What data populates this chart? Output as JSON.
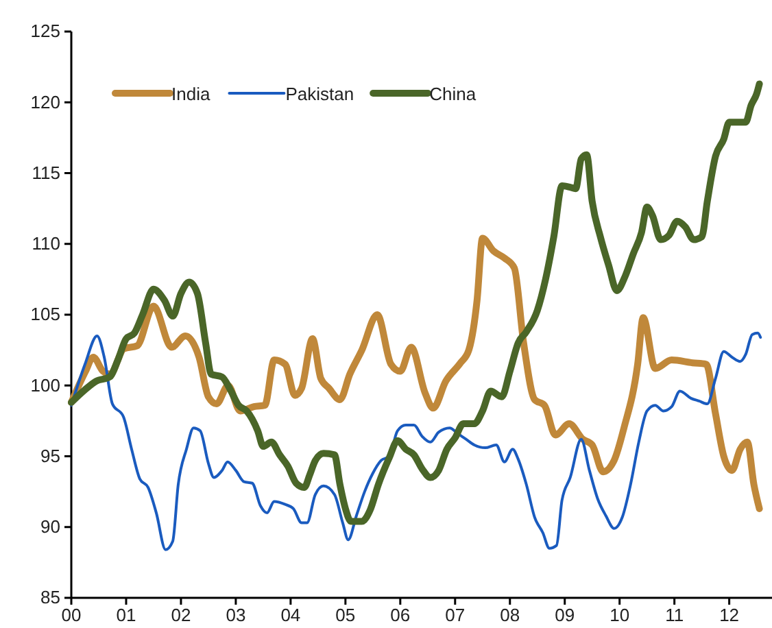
{
  "chart_data": {
    "type": "line",
    "xlim": [
      0,
      12.78
    ],
    "ylim": [
      85,
      125
    ],
    "xticks": [
      {
        "value": 0,
        "label": "00"
      },
      {
        "value": 1,
        "label": "01"
      },
      {
        "value": 2,
        "label": "02"
      },
      {
        "value": 3,
        "label": "03"
      },
      {
        "value": 4,
        "label": "04"
      },
      {
        "value": 5,
        "label": "05"
      },
      {
        "value": 6,
        "label": "06"
      },
      {
        "value": 7,
        "label": "07"
      },
      {
        "value": 8,
        "label": "08"
      },
      {
        "value": 9,
        "label": "09"
      },
      {
        "value": 10,
        "label": "10"
      },
      {
        "value": 11,
        "label": "11"
      },
      {
        "value": 12,
        "label": "12"
      }
    ],
    "yticks": [
      85,
      90,
      95,
      100,
      105,
      110,
      115,
      120,
      125
    ],
    "grid": false,
    "legend": "top left",
    "marker": "none",
    "line_style": "solid",
    "series": [
      {
        "name": "India",
        "color": "#c0883a",
        "x": [
          0,
          0.26,
          0.4,
          0.58,
          0.71,
          0.96,
          1.2,
          1.5,
          1.83,
          2.08,
          2.33,
          2.5,
          2.65,
          2.86,
          3.08,
          3.33,
          3.53,
          3.7,
          3.9,
          4.08,
          4.2,
          4.4,
          4.55,
          4.7,
          4.9,
          5.08,
          5.3,
          5.58,
          5.83,
          6.0,
          6.2,
          6.45,
          6.6,
          6.83,
          7.1,
          7.25,
          7.4,
          7.5,
          7.7,
          7.9,
          8.08,
          8.25,
          8.45,
          8.63,
          8.83,
          9.08,
          9.33,
          9.5,
          9.7,
          9.9,
          10.08,
          10.33,
          10.43,
          10.65,
          10.95,
          11.33,
          11.58,
          11.75,
          11.9,
          12.05,
          12.2,
          12.33,
          12.45,
          12.55
        ],
        "values": [
          98.8,
          101,
          102,
          101,
          100.8,
          102.6,
          102.8,
          105.6,
          102.7,
          103.5,
          102,
          99.2,
          98.7,
          100,
          98.2,
          98.5,
          98.6,
          101.8,
          101.5,
          99.3,
          99.8,
          103.3,
          100.5,
          99.8,
          99,
          100.8,
          102.5,
          105,
          101.5,
          101,
          102.7,
          99.5,
          98.4,
          100.3,
          101.6,
          102.5,
          106,
          110.4,
          109.5,
          109,
          108.3,
          103,
          99,
          98.6,
          96.5,
          97.3,
          96.2,
          95.8,
          93.9,
          94.7,
          97,
          101.5,
          104.8,
          101.2,
          101.8,
          101.6,
          101.5,
          98,
          95,
          94,
          95.5,
          96,
          93,
          91.3
        ]
      },
      {
        "name": "Pakistan",
        "color": "#1a5bbf",
        "x": [
          0,
          0.25,
          0.47,
          0.6,
          0.75,
          0.95,
          1.1,
          1.25,
          1.4,
          1.55,
          1.72,
          1.85,
          1.95,
          2.1,
          2.23,
          2.35,
          2.5,
          2.6,
          2.75,
          2.85,
          3.0,
          3.15,
          3.3,
          3.45,
          3.57,
          3.7,
          3.9,
          4.05,
          4.2,
          4.3,
          4.45,
          4.6,
          4.8,
          4.95,
          5.05,
          5.2,
          5.35,
          5.5,
          5.65,
          5.8,
          5.95,
          6.1,
          6.25,
          6.4,
          6.55,
          6.7,
          6.9,
          7.05,
          7.2,
          7.35,
          7.55,
          7.75,
          7.9,
          8.05,
          8.15,
          8.3,
          8.45,
          8.6,
          8.72,
          8.85,
          8.95,
          9.1,
          9.3,
          9.45,
          9.6,
          9.75,
          9.9,
          10.05,
          10.2,
          10.35,
          10.5,
          10.65,
          10.8,
          10.95,
          11.1,
          11.3,
          11.45,
          11.6,
          11.75,
          11.9,
          12.05,
          12.2,
          12.3,
          12.42,
          12.52,
          12.57
        ],
        "values": [
          98.6,
          101.5,
          103.5,
          102,
          98.7,
          97.8,
          95.5,
          93.4,
          92.8,
          91,
          88.4,
          89,
          93,
          95.5,
          97,
          96.8,
          94.5,
          93.5,
          94,
          94.6,
          94,
          93.2,
          93.1,
          91.5,
          91,
          91.8,
          91.6,
          91.3,
          90.3,
          90.3,
          92.3,
          92.9,
          92.3,
          90.3,
          89.1,
          90.8,
          92.5,
          93.8,
          94.7,
          95,
          96.8,
          97.2,
          97.2,
          96.4,
          96,
          96.7,
          97,
          96.6,
          96.2,
          95.8,
          95.6,
          95.8,
          94.6,
          95.5,
          94.8,
          93,
          90.7,
          89.6,
          88.5,
          88.7,
          91.9,
          93.5,
          96.2,
          94,
          92,
          90.8,
          89.9,
          90.7,
          93,
          96,
          98.2,
          98.6,
          98.2,
          98.5,
          99.6,
          99.1,
          98.9,
          98.7,
          100.5,
          102.4,
          102,
          101.7,
          102.2,
          103.6,
          103.7,
          103.4
        ]
      },
      {
        "name": "China",
        "color": "#4a6628",
        "x": [
          0,
          0.25,
          0.45,
          0.7,
          0.85,
          1.0,
          1.15,
          1.3,
          1.5,
          1.7,
          1.85,
          2.0,
          2.15,
          2.3,
          2.45,
          2.55,
          2.75,
          2.9,
          3.05,
          3.2,
          3.4,
          3.5,
          3.65,
          3.8,
          3.95,
          4.1,
          4.25,
          4.35,
          4.45,
          4.6,
          4.8,
          4.9,
          5.0,
          5.1,
          5.3,
          5.45,
          5.6,
          5.8,
          5.95,
          6.1,
          6.25,
          6.4,
          6.55,
          6.7,
          6.85,
          7.0,
          7.15,
          7.35,
          7.5,
          7.65,
          7.85,
          8.0,
          8.15,
          8.3,
          8.5,
          8.65,
          8.8,
          8.95,
          9.1,
          9.2,
          9.3,
          9.4,
          9.5,
          9.65,
          9.8,
          9.95,
          10.1,
          10.25,
          10.4,
          10.5,
          10.6,
          10.75,
          10.9,
          11.05,
          11.2,
          11.35,
          11.5,
          11.6,
          11.75,
          11.9,
          12.0,
          12.15,
          12.3,
          12.4,
          12.5,
          12.55
        ],
        "values": [
          98.8,
          99.7,
          100.3,
          100.6,
          101.8,
          103.3,
          103.7,
          105,
          106.8,
          106,
          104.9,
          106.5,
          107.3,
          106.5,
          103,
          100.8,
          100.6,
          99.7,
          98.6,
          98.2,
          96.8,
          95.7,
          96,
          95.1,
          94.3,
          93.1,
          92.8,
          93.7,
          94.7,
          95.2,
          95.1,
          93,
          91.3,
          90.4,
          90.4,
          91.2,
          93,
          94.9,
          96.1,
          95.5,
          95.1,
          94.1,
          93.5,
          94,
          95.5,
          96.3,
          97.3,
          97.3,
          98.2,
          99.6,
          99.2,
          101,
          103,
          103.8,
          105.3,
          107.5,
          110.5,
          114.1,
          114,
          113.9,
          116,
          116.3,
          113,
          110.5,
          108.5,
          106.7,
          107.7,
          109.3,
          110.8,
          112.6,
          112,
          110.3,
          110.6,
          111.6,
          111.2,
          110.3,
          110.5,
          113,
          116.2,
          117.4,
          118.6,
          118.6,
          118.6,
          119.8,
          120.6,
          121.3
        ]
      }
    ]
  }
}
